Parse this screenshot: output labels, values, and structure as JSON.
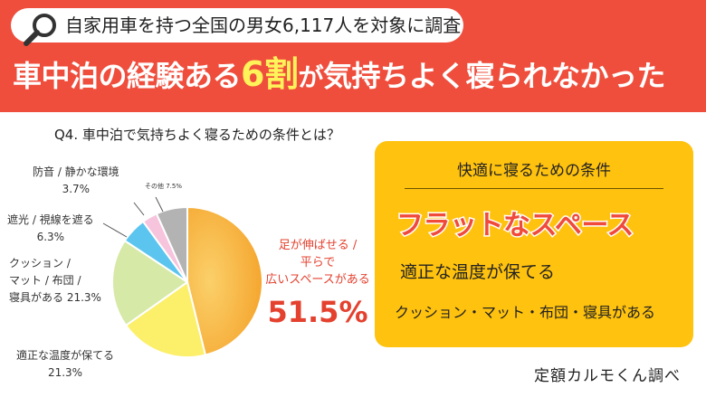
{
  "header": {
    "survey_text": "自家用車を持つ全国の男女6,117人を対象に調査",
    "headline_pre": "車中泊の経験ある",
    "headline_big": "6割",
    "headline_ga": "が",
    "headline_post": "気持ちよく寝られなかった"
  },
  "question": "Q4. 車中泊で気持ちよく寝るための条件とは？",
  "chart_data": {
    "type": "pie",
    "title": "",
    "start_angle_deg": 0,
    "direction": "clockwise",
    "slices": [
      {
        "key": "flat",
        "label": "足が伸ばせる / 平らで 広いスペースがある",
        "label_lines": [
          "足が伸ばせる /",
          "平らで",
          "広いスペースがある"
        ],
        "value": 51.5,
        "value_text": "51.5%",
        "color": "#f5a12a"
      },
      {
        "key": "temp",
        "label": "適正な温度が保てる",
        "label_lines": [
          "適正な温度が保てる"
        ],
        "value": 21.3,
        "value_text": "21.3%",
        "color": "#fcef6a"
      },
      {
        "key": "cushion",
        "label": "クッション / マット / 布団 / 寝具がある",
        "label_lines": [
          "クッション /",
          "マット / 布団 /",
          "寝具がある 21.3%"
        ],
        "value": 21.3,
        "value_text": "21.3%",
        "color": "#d6e9a6"
      },
      {
        "key": "shade",
        "label": "遮光 / 視線を遮る",
        "label_lines": [
          "遮光 / 視線を遮る",
          "6.3%"
        ],
        "value": 6.3,
        "value_text": "6.3%",
        "color": "#5cc5ef"
      },
      {
        "key": "noise",
        "label": "防音 / 静かな環境",
        "label_lines": [
          "防音 / 静かな環境",
          "3.7%"
        ],
        "value": 3.7,
        "value_text": "3.7%",
        "color": "#f7c4dd"
      },
      {
        "key": "other",
        "label": "その他",
        "label_lines": [
          "その他 7.5%"
        ],
        "value": 7.5,
        "value_text": "7.5%",
        "color": "#b3b3b3"
      }
    ]
  },
  "panel": {
    "title": "快適に寝るための条件",
    "item1": "フラットなスペース",
    "item2": "適正な温度が保てる",
    "item3": "クッション・マット・布団・寝具がある",
    "bg_color": "#ffc20e"
  },
  "credit": "定額カルモくん調べ",
  "colors": {
    "header": "#ef4e3d",
    "highlight_yellow": "#fff35a",
    "accent_red": "#e4412f"
  }
}
